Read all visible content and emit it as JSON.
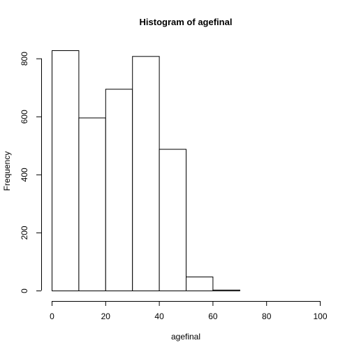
{
  "chart_data": {
    "type": "bar",
    "title": "Histogram of agefinal",
    "xlabel": "agefinal",
    "ylabel": "Frequency",
    "bins": [
      {
        "x0": 0,
        "x1": 10,
        "count": 828
      },
      {
        "x0": 10,
        "x1": 20,
        "count": 596
      },
      {
        "x0": 20,
        "x1": 30,
        "count": 695
      },
      {
        "x0": 30,
        "x1": 40,
        "count": 808
      },
      {
        "x0": 40,
        "x1": 50,
        "count": 488
      },
      {
        "x0": 50,
        "x1": 60,
        "count": 48
      },
      {
        "x0": 60,
        "x1": 70,
        "count": 3
      },
      {
        "x0": 70,
        "x1": 80,
        "count": 0
      },
      {
        "x0": 80,
        "x1": 90,
        "count": 0
      },
      {
        "x0": 90,
        "x1": 100,
        "count": 0
      }
    ],
    "xlim": [
      0,
      100
    ],
    "ylim": [
      0,
      828
    ],
    "xticks": [
      0,
      20,
      40,
      60,
      80,
      100
    ],
    "yticks": [
      0,
      200,
      400,
      600,
      800
    ],
    "grid": false
  }
}
